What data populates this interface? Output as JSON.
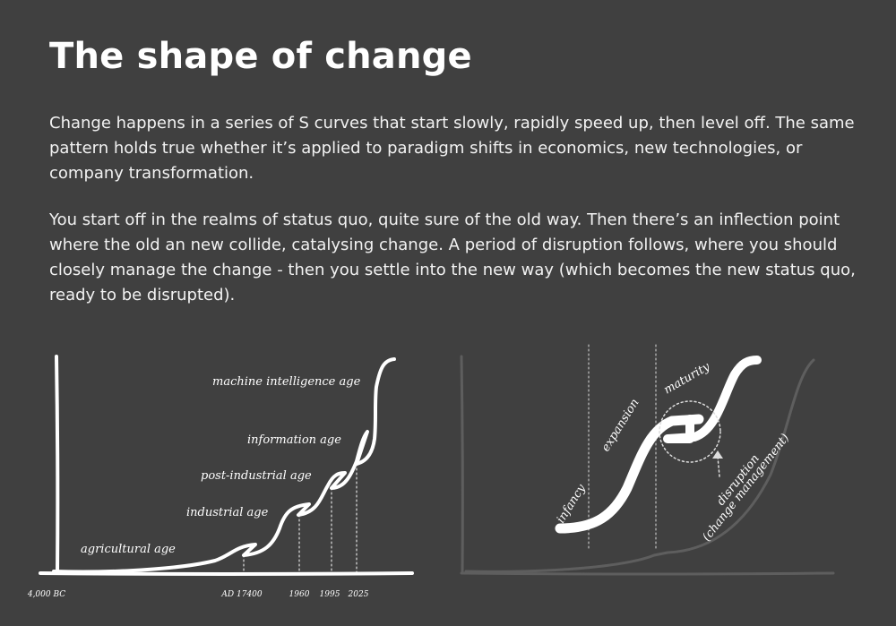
{
  "header": {
    "title": "The shape of change"
  },
  "body": {
    "paragraphs": [
      "Change happens in a series of S curves that start slowly, rapidly speed up, then level off. The same pattern holds true whether it’s applied to paradigm shifts in economics, new technologies, or company transformation.",
      "You start off in the realms of status quo, quite sure of the old way. Then there’s an inflection point where the old an new collide, catalysing change. A period of disruption follows, where you should closely manage the change - then you settle into the new way (which becomes the new status quo, ready to be disrupted)."
    ]
  },
  "left_diagram": {
    "ages": [
      "agricultural age",
      "industrial age",
      "post-industrial age",
      "information age",
      "machine intelligence age"
    ],
    "axis_labels": [
      "4,000 BC",
      "AD 17400",
      "1960",
      "1995",
      "2025"
    ]
  },
  "right_diagram": {
    "phases": [
      "infancy",
      "expansion",
      "maturity"
    ],
    "disruption": "disruption",
    "disruption_note": "(change management)"
  }
}
